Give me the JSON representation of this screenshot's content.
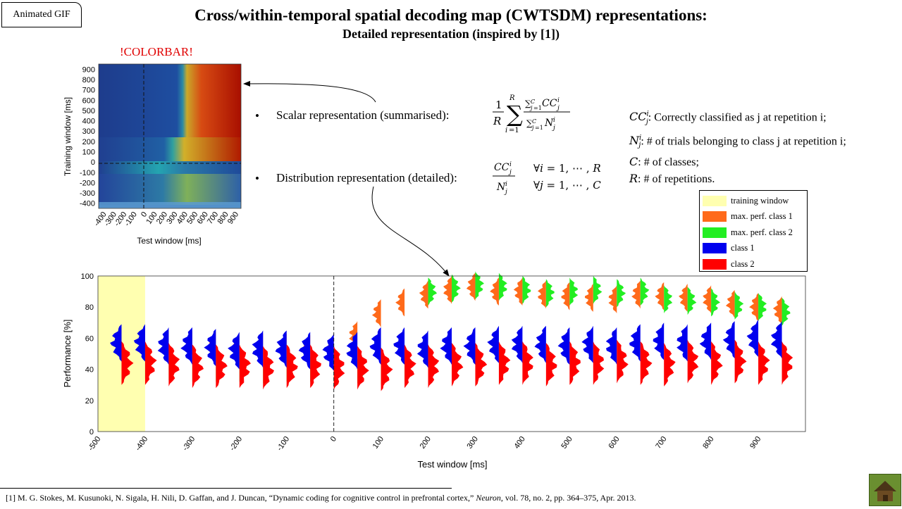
{
  "header": {
    "gif_button": "Animated GIF",
    "title": "Cross/within-temporal spatial decoding map (CWTSDM) representations:",
    "subtitle": "Detailed representation  (inspired  by  [1])"
  },
  "colorbar_note": "!COLORBAR!",
  "bullets": {
    "scalar": "Scalar representation (summarised):",
    "distribution": "Distribution representation (detailed):"
  },
  "definitions": {
    "cc": ": Correctly classified as j at repetition i;",
    "n": ": # of trials belonging to class j at repetition i;",
    "c": ": # of classes;",
    "r": ": # of repetitions."
  },
  "legend": [
    {
      "label": "training window",
      "color": "#ffffb0"
    },
    {
      "label": "max. perf. class 1",
      "color": "#ff6a1a"
    },
    {
      "label": "max. perf. class 2",
      "color": "#22ee22"
    },
    {
      "label": "class 1",
      "color": "#0000ee"
    },
    {
      "label": "class 2",
      "color": "#ff0000"
    }
  ],
  "chart_data": [
    {
      "type": "heatmap",
      "xlabel": "Test window [ms]",
      "ylabel": "Training window [ms]",
      "x_ticks": [
        "-400",
        "-300",
        "-200",
        "-100",
        "0",
        "100",
        "200",
        "300",
        "400",
        "500",
        "600",
        "700",
        "800",
        "900"
      ],
      "y_ticks": [
        "900",
        "800",
        "700",
        "600",
        "500",
        "400",
        "300",
        "200",
        "100",
        "0",
        "-100",
        "-200",
        "-300",
        "-400"
      ],
      "xlim": [
        -450,
        950
      ],
      "ylim": [
        -450,
        950
      ]
    },
    {
      "type": "violin",
      "xlabel": "Test window [ms]",
      "ylabel": "Performance [%]",
      "xlim": [
        -500,
        1000
      ],
      "ylim": [
        0,
        100
      ],
      "x_ticks": [
        -500,
        -400,
        -300,
        -200,
        -100,
        0,
        100,
        200,
        300,
        400,
        500,
        600,
        700,
        800,
        900
      ],
      "y_ticks": [
        0,
        20,
        40,
        60,
        80,
        100
      ],
      "training_window": [
        -500,
        -400
      ],
      "stimulus_onset": 0,
      "time_points": [
        -450,
        -400,
        -350,
        -300,
        -250,
        -200,
        -150,
        -100,
        -50,
        0,
        50,
        100,
        150,
        200,
        250,
        300,
        350,
        400,
        450,
        500,
        550,
        600,
        650,
        700,
        750,
        800,
        850,
        900,
        950
      ],
      "class1_center": [
        57,
        57,
        55,
        55,
        54,
        52,
        53,
        53,
        52,
        51,
        52,
        55,
        55,
        53,
        55,
        55,
        56,
        56,
        56,
        55,
        56,
        55,
        57,
        58,
        57,
        58,
        59,
        60,
        59
      ],
      "class2_center": [
        44,
        44,
        43,
        42,
        42,
        42,
        41,
        42,
        42,
        41,
        41,
        40,
        42,
        42,
        43,
        43,
        44,
        44,
        43,
        44,
        44,
        45,
        44,
        43,
        45,
        44,
        45,
        44,
        44
      ],
      "maxperf1_center": [
        null,
        null,
        null,
        null,
        null,
        null,
        null,
        null,
        null,
        null,
        62,
        76,
        83,
        88,
        91,
        93,
        90,
        90,
        88,
        87,
        86,
        85,
        88,
        87,
        86,
        85,
        82,
        80,
        78
      ],
      "maxperf2_center": [
        null,
        null,
        null,
        null,
        null,
        null,
        null,
        null,
        null,
        null,
        null,
        null,
        null,
        90,
        92,
        94,
        93,
        91,
        89,
        90,
        91,
        89,
        90,
        85,
        84,
        83,
        81,
        80,
        77
      ]
    }
  ]
}
